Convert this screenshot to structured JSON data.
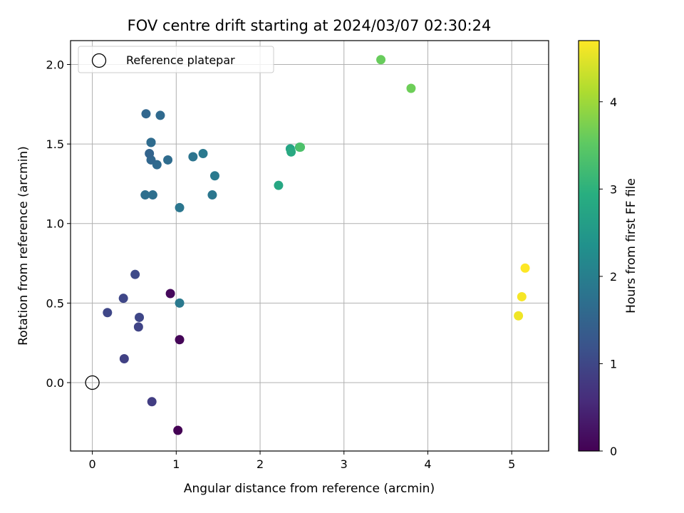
{
  "chart_data": {
    "type": "scatter",
    "title": "FOV centre drift starting at 2024/03/07 02:30:24",
    "xlabel": "Angular distance from reference (arcmin)",
    "ylabel": "Rotation from reference (arcmin)",
    "xlim": [
      -0.26,
      5.44
    ],
    "ylim": [
      -0.43,
      2.15
    ],
    "xticks": [
      0,
      1,
      2,
      3,
      4,
      5
    ],
    "yticks": [
      0.0,
      0.5,
      1.0,
      1.5,
      2.0
    ],
    "xtick_labels": [
      "0",
      "1",
      "2",
      "3",
      "4",
      "5"
    ],
    "ytick_labels": [
      "0.0",
      "0.5",
      "1.0",
      "1.5",
      "2.0"
    ],
    "grid": true,
    "legend": {
      "placement": "top-left",
      "entries": [
        "Reference platepar"
      ]
    },
    "reference_point": {
      "x": 0.0,
      "y": 0.0,
      "marker": "open-circle",
      "edge_color": "#000000"
    },
    "colorbar": {
      "label": "Hours from first FF file",
      "cmap": "viridis",
      "range": [
        0,
        4.7
      ],
      "ticks": [
        0,
        1,
        2,
        3,
        4
      ],
      "tick_labels": [
        "0",
        "1",
        "2",
        "3",
        "4"
      ]
    },
    "points": [
      {
        "x": 1.02,
        "y": -0.3,
        "c": 0.0
      },
      {
        "x": 1.04,
        "y": 0.27,
        "c": 0.05
      },
      {
        "x": 0.93,
        "y": 0.56,
        "c": 0.1
      },
      {
        "x": 0.71,
        "y": -0.12,
        "c": 0.85
      },
      {
        "x": 0.38,
        "y": 0.15,
        "c": 0.9
      },
      {
        "x": 0.55,
        "y": 0.35,
        "c": 0.95
      },
      {
        "x": 0.56,
        "y": 0.41,
        "c": 1.0
      },
      {
        "x": 0.18,
        "y": 0.44,
        "c": 1.0
      },
      {
        "x": 0.37,
        "y": 0.53,
        "c": 1.0
      },
      {
        "x": 0.51,
        "y": 0.68,
        "c": 1.05
      },
      {
        "x": 1.04,
        "y": 0.5,
        "c": 1.9
      },
      {
        "x": 1.04,
        "y": 1.1,
        "c": 1.85
      },
      {
        "x": 0.63,
        "y": 1.18,
        "c": 1.7
      },
      {
        "x": 0.72,
        "y": 1.18,
        "c": 1.7
      },
      {
        "x": 1.43,
        "y": 1.18,
        "c": 1.85
      },
      {
        "x": 1.46,
        "y": 1.3,
        "c": 1.9
      },
      {
        "x": 0.77,
        "y": 1.37,
        "c": 1.6
      },
      {
        "x": 0.7,
        "y": 1.4,
        "c": 1.55
      },
      {
        "x": 0.9,
        "y": 1.4,
        "c": 1.65
      },
      {
        "x": 0.68,
        "y": 1.44,
        "c": 1.5
      },
      {
        "x": 1.2,
        "y": 1.42,
        "c": 1.8
      },
      {
        "x": 1.32,
        "y": 1.44,
        "c": 1.9
      },
      {
        "x": 0.7,
        "y": 1.51,
        "c": 1.6
      },
      {
        "x": 0.7,
        "y": 1.51,
        "c": 1.65
      },
      {
        "x": 0.64,
        "y": 1.69,
        "c": 1.55
      },
      {
        "x": 0.81,
        "y": 1.68,
        "c": 1.6
      },
      {
        "x": 2.22,
        "y": 1.24,
        "c": 2.8
      },
      {
        "x": 2.36,
        "y": 1.47,
        "c": 2.75
      },
      {
        "x": 2.37,
        "y": 1.45,
        "c": 2.85
      },
      {
        "x": 2.47,
        "y": 1.48,
        "c": 3.2
      },
      {
        "x": 2.48,
        "y": 1.48,
        "c": 3.35
      },
      {
        "x": 3.44,
        "y": 2.03,
        "c": 3.6
      },
      {
        "x": 3.8,
        "y": 1.85,
        "c": 3.65
      },
      {
        "x": 5.08,
        "y": 0.42,
        "c": 4.6
      },
      {
        "x": 5.12,
        "y": 0.54,
        "c": 4.65
      },
      {
        "x": 5.16,
        "y": 0.72,
        "c": 4.7
      }
    ]
  }
}
